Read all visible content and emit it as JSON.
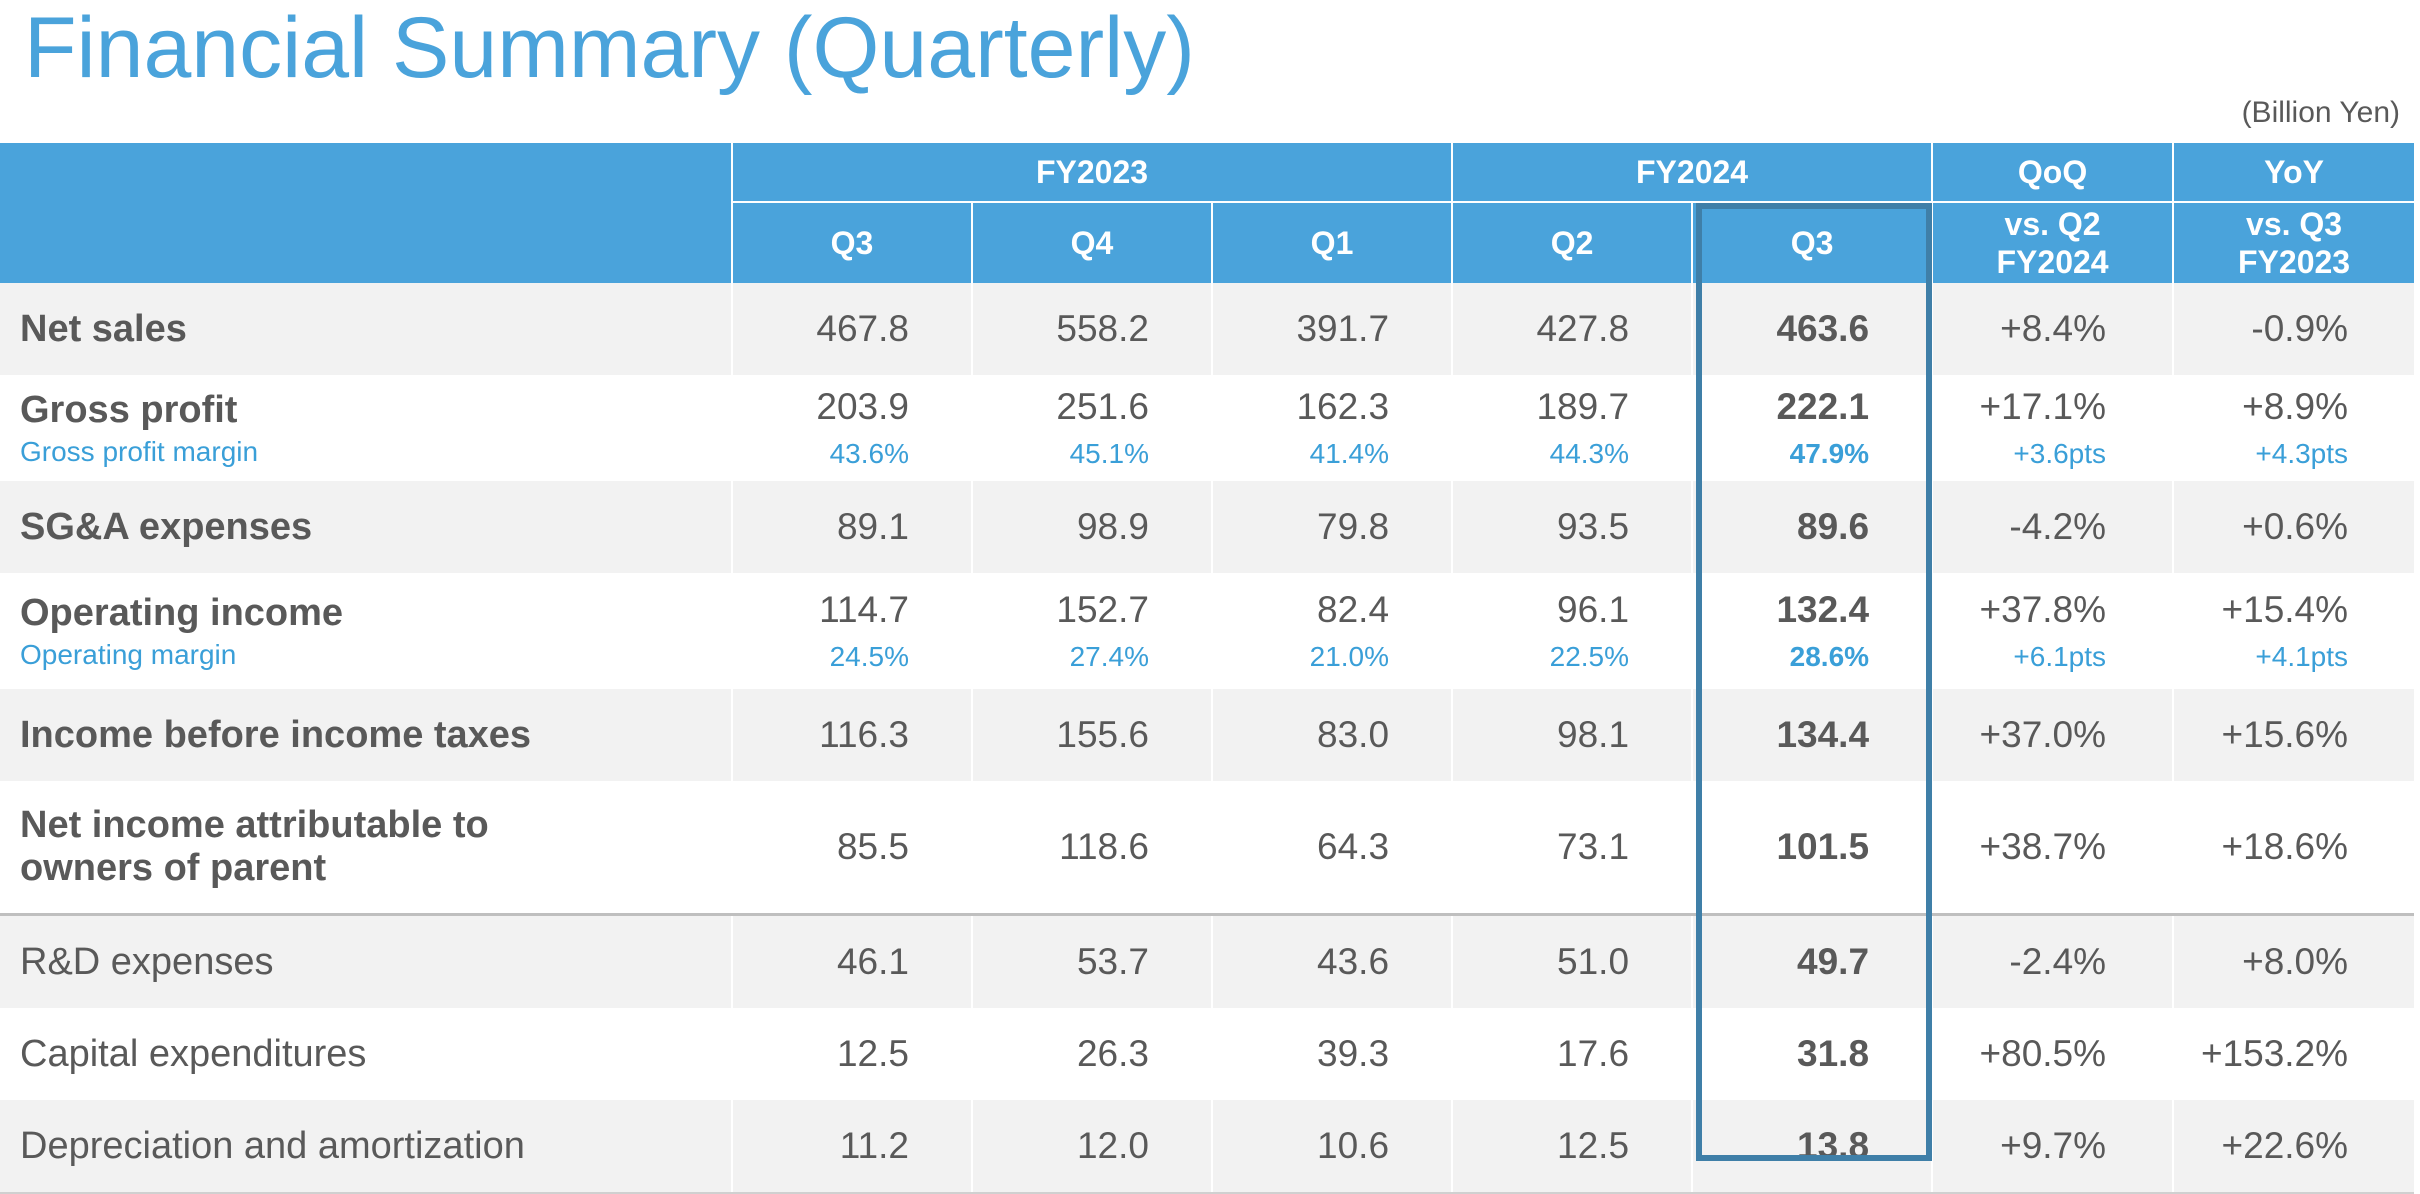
{
  "title": "Financial Summary (Quarterly)",
  "unit": "(Billion Yen)",
  "header": {
    "groups": [
      "FY2023",
      "FY2024",
      "QoQ",
      "YoY"
    ],
    "quarters": [
      "Q3",
      "Q4",
      "Q1",
      "Q2",
      "Q3"
    ],
    "qoq_sub": [
      "vs. Q2",
      "FY2024"
    ],
    "yoy_sub": [
      "vs. Q3",
      "FY2023"
    ]
  },
  "rows": [
    {
      "label": "Net sales",
      "values": [
        "467.8",
        "558.2",
        "391.7",
        "427.8",
        "463.6"
      ],
      "qoq": "+8.4%",
      "yoy": "-0.9%"
    },
    {
      "label": "Gross profit",
      "sub_label": "Gross profit margin",
      "values": [
        "203.9",
        "251.6",
        "162.3",
        "189.7",
        "222.1"
      ],
      "sub_values": [
        "43.6%",
        "45.1%",
        "41.4%",
        "44.3%",
        "47.9%"
      ],
      "qoq": "+17.1%",
      "yoy": "+8.9%",
      "qoq_sub": "+3.6pts",
      "yoy_sub": "+4.3pts"
    },
    {
      "label": "SG&A expenses",
      "values": [
        "89.1",
        "98.9",
        "79.8",
        "93.5",
        "89.6"
      ],
      "qoq": "-4.2%",
      "yoy": "+0.6%"
    },
    {
      "label": "Operating income",
      "sub_label": "Operating margin",
      "values": [
        "114.7",
        "152.7",
        "82.4",
        "96.1",
        "132.4"
      ],
      "sub_values": [
        "24.5%",
        "27.4%",
        "21.0%",
        "22.5%",
        "28.6%"
      ],
      "qoq": "+37.8%",
      "yoy": "+15.4%",
      "qoq_sub": "+6.1pts",
      "yoy_sub": "+4.1pts"
    },
    {
      "label": "Income before income taxes",
      "values": [
        "116.3",
        "155.6",
        "83.0",
        "98.1",
        "134.4"
      ],
      "qoq": "+37.0%",
      "yoy": "+15.6%"
    },
    {
      "label_lines": [
        "Net income attributable to",
        "owners of parent"
      ],
      "values": [
        "85.5",
        "118.6",
        "64.3",
        "73.1",
        "101.5"
      ],
      "qoq": "+38.7%",
      "yoy": "+18.6%"
    },
    {
      "label": "R&D expenses",
      "values": [
        "46.1",
        "53.7",
        "43.6",
        "51.0",
        "49.7"
      ],
      "qoq": "-2.4%",
      "yoy": "+8.0%"
    },
    {
      "label": "Capital expenditures",
      "values": [
        "12.5",
        "26.3",
        "39.3",
        "17.6",
        "31.8"
      ],
      "qoq": "+80.5%",
      "yoy": "+153.2%"
    },
    {
      "label": "Depreciation and amortization",
      "values": [
        "11.2",
        "12.0",
        "10.6",
        "12.5",
        "13.8"
      ],
      "qoq": "+9.7%",
      "yoy": "+22.6%"
    }
  ]
}
